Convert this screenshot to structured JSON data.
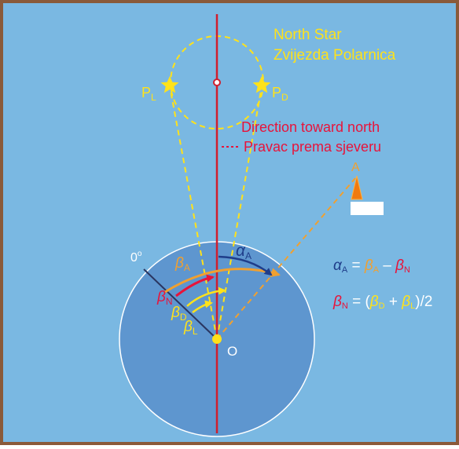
{
  "colors": {
    "background": "#7ab8e2",
    "frame": "#8a5a3a",
    "dome_fill": "#5e96cf",
    "north_line": "#d01e2e",
    "yellow": "#ffe21a",
    "orange": "#f0a030",
    "navy": "#1f3d8a",
    "pink_red": "#e8133a",
    "white": "#ffffff"
  },
  "north_star": {
    "title_line1": "North Star",
    "title_line2": "Zvijezda Polarnica"
  },
  "star_left": {
    "label": "P",
    "sub": "L"
  },
  "star_right": {
    "label": "P",
    "sub": "D"
  },
  "direction": {
    "line1": "Direction toward north",
    "line2": "Pravac prema sjeveru"
  },
  "point_a": {
    "label": "A"
  },
  "zero_label": {
    "value": "0",
    "sup": "o"
  },
  "origin": {
    "label": "O"
  },
  "angles": {
    "beta": "β",
    "alpha": "α",
    "sub_A": "A",
    "sub_N": "N",
    "sub_D": "D",
    "sub_L": "L"
  },
  "formula1": {
    "alpha": "α",
    "alpha_sub": "A",
    "eq": " = ",
    "beta": "β",
    "beta_a_sub": "A",
    "minus": " – ",
    "beta_n_sub": "N"
  },
  "formula2": {
    "beta": "β",
    "n_sub": "N",
    "eq": " = (",
    "d_sub": "D",
    "plus": " + ",
    "l_sub": "L",
    "end": ")/2"
  }
}
